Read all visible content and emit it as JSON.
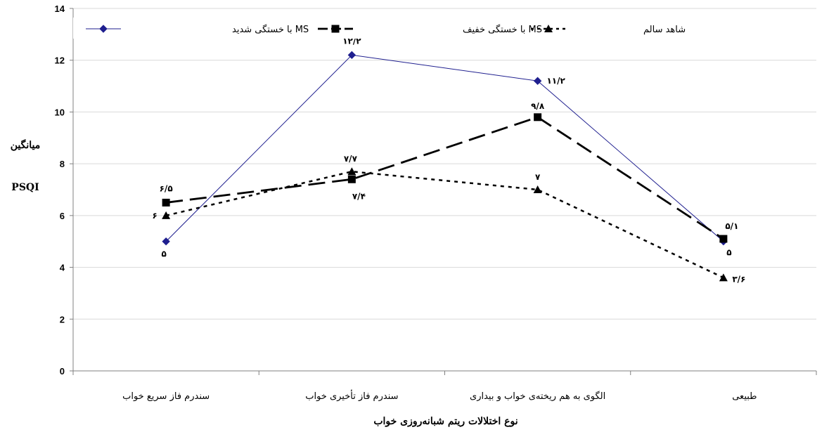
{
  "chart_data": {
    "type": "line",
    "xlabel": "نوع اختلالات ریتم شبانه‌روزی خواب",
    "ylabel_line1": "میانگین",
    "ylabel_line2": "PSQI",
    "ylim": [
      0,
      14
    ],
    "yticks": [
      "0",
      "2",
      "4",
      "6",
      "8",
      "10",
      "12",
      "14"
    ],
    "grid": "horizontal",
    "legend_position": "top",
    "categories": [
      "سندرم فاز سریع خواب",
      "سندرم فاز تأخیری خواب",
      "الگوی به هم ریخته‌ی خواب و بیداری",
      "طبیعی"
    ],
    "series": [
      {
        "name": "MS با خستگی شدید",
        "values": [
          5,
          12.2,
          11.2,
          5
        ],
        "labels": [
          "۵",
          "۱۲/۲",
          "۱۱/۲",
          "۵"
        ],
        "color": "#1f1f8f",
        "style": "solid-thin",
        "marker": "diamond"
      },
      {
        "name": "MS با خستگی خفیف",
        "values": [
          6.5,
          7.4,
          9.8,
          5.1
        ],
        "labels": [
          "۶/۵",
          "۷/۴",
          "۹/۸",
          "۵/۱"
        ],
        "color": "#000000",
        "style": "long-dash",
        "marker": "square"
      },
      {
        "name": "شاهد سالم",
        "values": [
          6,
          7.7,
          7,
          3.6
        ],
        "labels": [
          "۶",
          "۷/۷",
          "۷",
          "۳/۶"
        ],
        "color": "#000000",
        "style": "short-dash",
        "marker": "triangle"
      }
    ]
  }
}
